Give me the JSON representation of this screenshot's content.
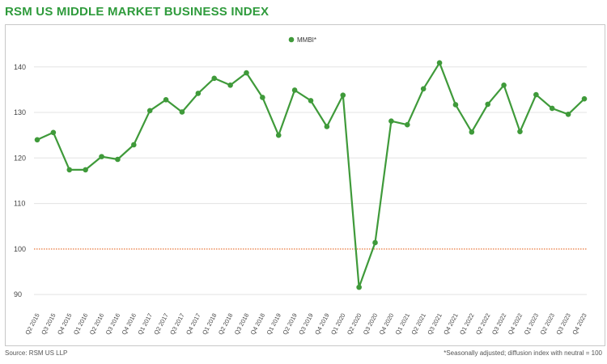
{
  "title": "RSM US MIDDLE MARKET BUSINESS INDEX",
  "footer": {
    "source": "Source: RSM US LLP",
    "note": "*Seasonally adjusted; diffusion index with neutral = 100"
  },
  "colors": {
    "title": "#2f9b3c",
    "series": "#3f9a3a",
    "reference": "#e8773a",
    "grid": "#e3e3e3"
  },
  "chart_data": {
    "type": "line",
    "title": "RSM US MIDDLE MARKET BUSINESS INDEX",
    "xlabel": "",
    "ylabel": "",
    "ylim": [
      87,
      146
    ],
    "yticks": [
      90,
      100,
      110,
      120,
      130,
      140
    ],
    "grid": true,
    "legend": "top-center",
    "reference_line": {
      "y": 100,
      "style": "dotted"
    },
    "categories": [
      "Q2 2015",
      "Q3 2015",
      "Q4 2015",
      "Q1 2016",
      "Q2 2016",
      "Q3 2016",
      "Q4 2016",
      "Q1 2017",
      "Q2 2017",
      "Q3 2017",
      "Q4 2017",
      "Q1 2018",
      "Q2 2018",
      "Q3 2018",
      "Q4 2018",
      "Q1 2019",
      "Q2 2019",
      "Q3 2019",
      "Q4 2019",
      "Q1 2020",
      "Q2 2020",
      "Q3 2020",
      "Q4 2020",
      "Q1 2021",
      "Q2 2021",
      "Q3 2021",
      "Q4 2021",
      "Q1 2022",
      "Q2 2022",
      "Q3 2022",
      "Q4 2022",
      "Q1 2023",
      "Q2 2023",
      "Q3 2023",
      "Q4 2023"
    ],
    "series": [
      {
        "name": "MMBI*",
        "values": [
          124.0,
          125.6,
          117.4,
          117.4,
          120.3,
          119.7,
          122.9,
          130.4,
          132.8,
          130.1,
          134.2,
          137.5,
          136.0,
          138.7,
          133.3,
          125.0,
          134.9,
          132.6,
          126.9,
          133.8,
          91.6,
          101.4,
          128.1,
          127.3,
          135.2,
          140.9,
          131.7,
          125.7,
          131.8,
          136.0,
          125.8,
          133.9,
          130.9,
          129.6,
          133.0
        ]
      }
    ]
  }
}
